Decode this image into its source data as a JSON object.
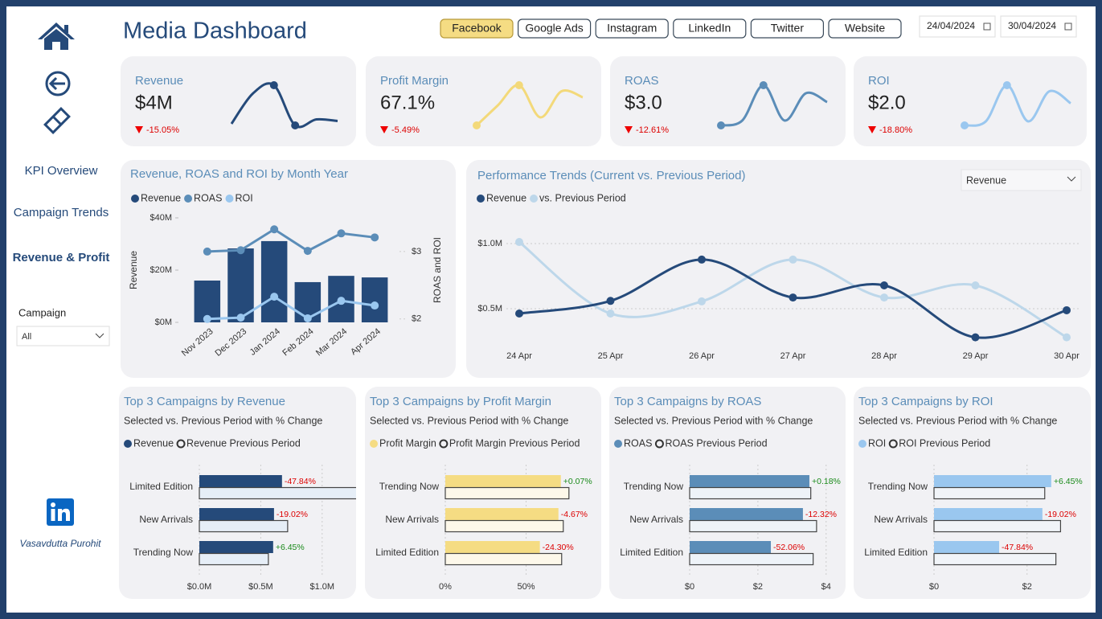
{
  "header": {
    "title": "Media Dashboard",
    "channels": [
      "Facebook",
      "Google Ads",
      "Instagram",
      "LinkedIn",
      "Twitter",
      "Website"
    ],
    "active_channel": 0,
    "dates": [
      "24/04/2024",
      "30/04/2024"
    ]
  },
  "nav": {
    "items": [
      "KPI Overview",
      "Campaign Trends",
      "Revenue & Profit"
    ],
    "active": 2,
    "filter_label": "Campaign",
    "filter_value": "All",
    "author": "Vasavdutta Purohit"
  },
  "kpis": [
    {
      "label": "Revenue",
      "value": "$4M",
      "change": -15.05,
      "change_label": "-15.05%",
      "color": "#254a7a",
      "sparkline": [
        0.04,
        0.79,
        1,
        0,
        0.15,
        0.11
      ]
    },
    {
      "label": "Profit Margin",
      "value": "67.1%",
      "change": -5.49,
      "change_label": "-5.49%",
      "color": "#f3d97a",
      "sparkline": [
        0,
        0.5,
        1,
        0.2,
        0.85,
        0.7
      ]
    },
    {
      "label": "ROAS",
      "value": "$3.0",
      "change": -12.61,
      "change_label": "-12.61%",
      "color": "#5b8db8",
      "sparkline": [
        0,
        0.12,
        1,
        0.12,
        0.8,
        0.58
      ]
    },
    {
      "label": "ROI",
      "value": "$2.0",
      "change": -18.8,
      "change_label": "-18.80%",
      "color": "#9ac7ef",
      "sparkline": [
        0,
        0.1,
        1,
        0.1,
        0.85,
        0.55
      ]
    }
  ],
  "chart_data": [
    {
      "type": "combo",
      "title": "Revenue, ROAS and ROI by Month Year",
      "categories": [
        "Nov 2023",
        "Dec 2023",
        "Jan 2024",
        "Feb 2024",
        "Mar 2024",
        "Apr 2024"
      ],
      "series": [
        {
          "name": "Revenue",
          "color": "#254a7a",
          "kind": "bar",
          "values": [
            16000000,
            28300000,
            31100000,
            15400000,
            17800000,
            17200000
          ]
        },
        {
          "name": "ROAS",
          "color": "#5b8db8",
          "axis": "y2",
          "values": [
            3.0,
            3.02,
            3.33,
            3.01,
            3.27,
            3.21
          ]
        },
        {
          "name": "ROI",
          "color": "#9ac7ef",
          "axis": "y2",
          "values": [
            2.0,
            2.02,
            2.33,
            2.01,
            2.27,
            2.2
          ]
        }
      ],
      "ylabel": "Revenue",
      "y2label": "ROAS and ROI",
      "ylim": [
        0,
        40000000
      ],
      "yticks": [
        {
          "value": 0,
          "label": "$0M"
        },
        {
          "value": 20000000,
          "label": "$20M"
        },
        {
          "value": 40000000,
          "label": "$40M"
        }
      ],
      "y2lim": [
        1.95,
        3.5
      ],
      "y2ticks": [
        {
          "value": 2,
          "label": "$2"
        },
        {
          "value": 3,
          "label": "$3"
        }
      ]
    },
    {
      "type": "line",
      "title": "Performance Trends (Current vs. Previous Period)",
      "selector": "Revenue",
      "categories": [
        "24 Apr",
        "25 Apr",
        "26 Apr",
        "27 Apr",
        "28 Apr",
        "29 Apr",
        "30 Apr"
      ],
      "series": [
        {
          "name": "Revenue",
          "color": "#254a7a",
          "values": [
            463000,
            560000,
            877000,
            586000,
            679000,
            280000,
            488000
          ]
        },
        {
          "name": "vs. Previous Period",
          "color": "#bdd7ea",
          "values": [
            1012000,
            463000,
            556000,
            877000,
            586000,
            679000,
            280000
          ]
        }
      ],
      "ylim": [
        250000,
        1200000
      ],
      "yticks": [
        {
          "value": 500000,
          "label": "$0.5M"
        },
        {
          "value": 1000000,
          "label": "$1.0M"
        }
      ],
      "grid": true
    },
    {
      "type": "hbar",
      "title": "Top 3 Campaigns by Revenue",
      "subtitle": "Selected vs. Previous Period with % Change",
      "categories": [
        "Limited Edition",
        "New Arrivals",
        "Trending Now"
      ],
      "series": [
        {
          "name": "Revenue",
          "color": "#254a7a",
          "values": [
            673000,
            608000,
            601000
          ]
        },
        {
          "name": "Revenue Previous Period",
          "color": "#e6eef7",
          "values": [
            1290000,
            719000,
            562000
          ]
        }
      ],
      "changes": [
        -47.84,
        -19.02,
        6.45
      ],
      "change_labels": [
        "-47.84%",
        "-19.02%",
        "+6.45%"
      ],
      "xlim": [
        0,
        1250000
      ],
      "xticks": [
        {
          "value": 0,
          "label": "$0.0M"
        },
        {
          "value": 500000,
          "label": "$0.5M"
        },
        {
          "value": 1000000,
          "label": "$1.0M"
        }
      ]
    },
    {
      "type": "hbar",
      "title": "Top 3 Campaigns by Profit Margin",
      "subtitle": "Selected vs. Previous Period with % Change",
      "categories": [
        "Trending Now",
        "New Arrivals",
        "Limited Edition"
      ],
      "series": [
        {
          "name": "Profit Margin",
          "color": "#f5dc83",
          "values": [
            71.5,
            70,
            58.5
          ]
        },
        {
          "name": "Profit Margin Previous Period",
          "color": "#fdf8ea",
          "values": [
            76.5,
            73,
            72
          ]
        }
      ],
      "changes": [
        0.07,
        -4.67,
        -24.3
      ],
      "change_labels": [
        "+0.07%",
        "-4.67%",
        "-24.30%"
      ],
      "xlim": [
        0,
        95
      ],
      "xticks": [
        {
          "value": 0,
          "label": "0%"
        },
        {
          "value": 50,
          "label": "50%"
        }
      ]
    },
    {
      "type": "hbar",
      "title": "Top 3 Campaigns by ROAS",
      "subtitle": "Selected vs. Previous Period with % Change",
      "categories": [
        "Trending Now",
        "New Arrivals",
        "Limited Edition"
      ],
      "series": [
        {
          "name": "ROAS",
          "color": "#5b8db8",
          "values": [
            3.51,
            3.32,
            2.38
          ]
        },
        {
          "name": "ROAS Previous Period",
          "color": "#eef3f8",
          "values": [
            3.55,
            3.72,
            3.62
          ]
        }
      ],
      "changes": [
        0.18,
        -12.32,
        -52.06
      ],
      "change_labels": [
        "+0.18%",
        "-12.32%",
        "-52.06%"
      ],
      "xlim": [
        0,
        4.5
      ],
      "xticks": [
        {
          "value": 0,
          "label": "$0"
        },
        {
          "value": 2,
          "label": "$2"
        },
        {
          "value": 4,
          "label": "$4"
        }
      ]
    },
    {
      "type": "hbar",
      "title": "Top 3 Campaigns by ROI",
      "subtitle": "Selected vs. Previous Period with % Change",
      "categories": [
        "Trending Now",
        "New Arrivals",
        "Limited Edition"
      ],
      "series": [
        {
          "name": "ROI",
          "color": "#9ac7ef",
          "values": [
            2.52,
            2.33,
            1.4
          ]
        },
        {
          "name": "ROI Previous Period",
          "color": "#f1f4f8",
          "values": [
            2.38,
            2.72,
            2.62
          ]
        }
      ],
      "changes": [
        6.45,
        -19.02,
        -47.84
      ],
      "change_labels": [
        "+6.45%",
        "-19.02%",
        "-47.84%"
      ],
      "xlim": [
        0,
        3.3
      ],
      "xticks": [
        {
          "value": 0,
          "label": "$0"
        },
        {
          "value": 2,
          "label": "$2"
        }
      ]
    }
  ]
}
